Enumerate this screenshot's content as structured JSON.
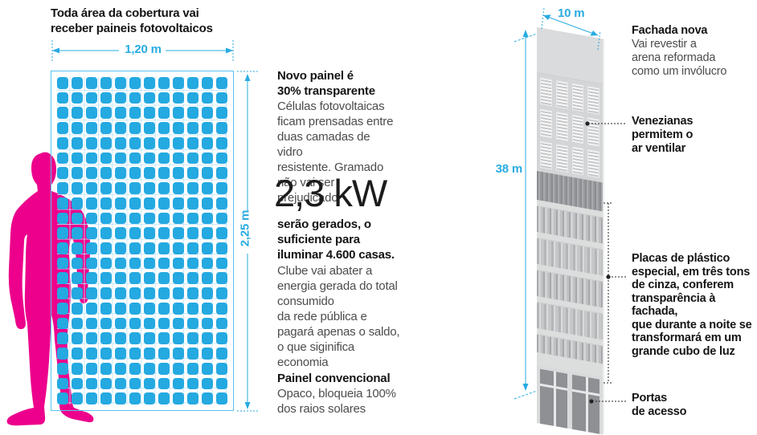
{
  "colors": {
    "cyan": "#29abe2",
    "magenta": "#ec008c",
    "cell_blue": "#24a9e1"
  },
  "solar_panel": {
    "intro": "Toda área da cobertura vai\nreceber paineis fotovoltaicos",
    "width_label": "1,20 m",
    "height_label": "2,25 m",
    "grid": {
      "cols": 12,
      "rows": 22
    },
    "new_panel_title": "Novo painel é\n30% transparente",
    "new_panel_body": "Células fotovoltaicas\nficam prensadas entre\nduas camadas de vidro\nresistente. Gramado\nnão vai ser prejudicado",
    "kw_value": "2,3 kW",
    "kw_bold": "serão gerados, o\nsuficiente para\niluminar 4.600 casas.",
    "kw_body": "Clube vai abater a\nenergia gerada do total\nconsumido\nda rede pública e\npagará apenas o saldo,\no que siginifica\neconomia",
    "conventional_title": "Painel convencional",
    "conventional_body": "Opaco, bloqueia 100%\ndos raios solares"
  },
  "building": {
    "width_label": "10 m",
    "height_label": "38 m",
    "facade_title": "Fachada nova",
    "facade_body": "Vai revestir a\narena reformada\ncomo um invólucro",
    "louvers_label": "Venezianas\npermitem o\nar ventilar",
    "plates_label": "Placas de plástico\nespecial, em três tons\nde cinza, conferem\ntransparência à fachada,\nque durante a noite se\ntransformará em um\ngrande cubo de luz",
    "doors_label": "Portas\nde acesso"
  }
}
